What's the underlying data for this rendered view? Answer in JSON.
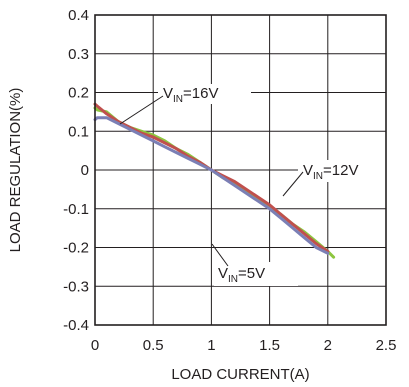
{
  "chart_data": {
    "type": "line",
    "xlabel": "LOAD CURRENT(A)",
    "ylabel": "LOAD REGULATION(%)",
    "xlim": [
      0,
      2.5
    ],
    "ylim": [
      -0.4,
      0.4
    ],
    "xticks": [
      "0",
      "0.5",
      "1",
      "1.5",
      "2",
      "2.5"
    ],
    "yticks": [
      "0.4",
      "0.3",
      "0.2",
      "0.1",
      "0",
      "-0.1",
      "-0.2",
      "-0.3",
      "-0.4"
    ],
    "grid": true,
    "legend": "none",
    "annotations": [
      {
        "main": "V",
        "sub": "IN",
        "rest": "=16V"
      },
      {
        "main": "V",
        "sub": "IN",
        "rest": "=12V"
      },
      {
        "main": "V",
        "sub": "IN",
        "rest": "=5V"
      }
    ],
    "series": [
      {
        "label_index": 0,
        "color": "#8dc63f",
        "x": [
          0,
          0.02,
          0.1,
          0.2,
          0.3,
          0.4,
          0.5,
          0.6,
          0.7,
          0.8,
          0.9,
          1.0,
          1.1,
          1.2,
          1.3,
          1.4,
          1.5,
          1.6,
          1.7,
          1.8,
          1.9,
          2.0,
          2.05
        ],
        "y": [
          0.16,
          0.155,
          0.15,
          0.125,
          0.11,
          0.1,
          0.09,
          0.075,
          0.055,
          0.04,
          0.02,
          0.0,
          -0.02,
          -0.035,
          -0.055,
          -0.075,
          -0.095,
          -0.115,
          -0.14,
          -0.16,
          -0.185,
          -0.21,
          -0.225
        ]
      },
      {
        "label_index": 1,
        "color": "#c0504d",
        "x": [
          0,
          0.02,
          0.1,
          0.2,
          0.3,
          0.4,
          0.5,
          0.6,
          0.7,
          0.8,
          0.9,
          1.0,
          1.1,
          1.2,
          1.3,
          1.4,
          1.5,
          1.6,
          1.7,
          1.8,
          1.9,
          2.0
        ],
        "y": [
          0.17,
          0.165,
          0.145,
          0.125,
          0.11,
          0.095,
          0.085,
          0.07,
          0.055,
          0.035,
          0.02,
          0.0,
          -0.015,
          -0.03,
          -0.05,
          -0.07,
          -0.09,
          -0.115,
          -0.14,
          -0.165,
          -0.19,
          -0.21
        ]
      },
      {
        "label_index": 2,
        "color": "#7b7fb5",
        "x": [
          0,
          0.02,
          0.1,
          0.2,
          0.3,
          0.4,
          0.5,
          0.6,
          0.7,
          0.8,
          0.9,
          1.0,
          1.1,
          1.2,
          1.3,
          1.4,
          1.5,
          1.6,
          1.7,
          1.8,
          1.9,
          2.0
        ],
        "y": [
          0.13,
          0.135,
          0.135,
          0.12,
          0.105,
          0.09,
          0.075,
          0.06,
          0.045,
          0.03,
          0.015,
          0.0,
          -0.02,
          -0.04,
          -0.06,
          -0.08,
          -0.1,
          -0.125,
          -0.15,
          -0.175,
          -0.2,
          -0.215
        ]
      }
    ]
  }
}
